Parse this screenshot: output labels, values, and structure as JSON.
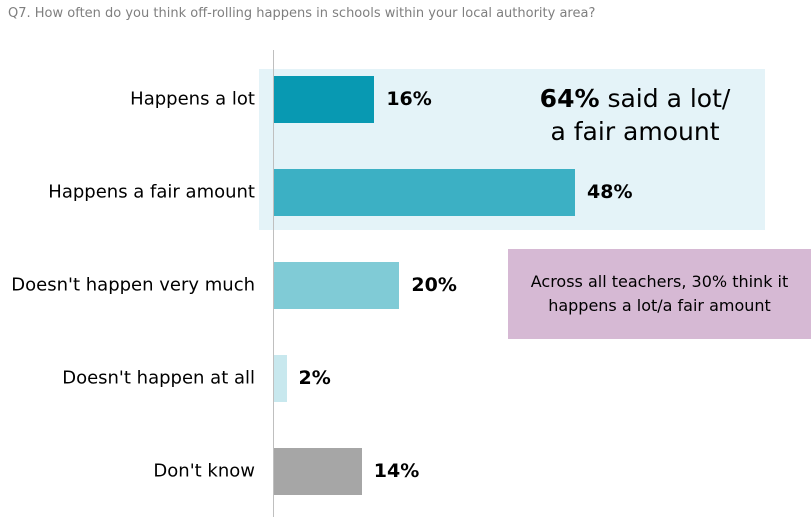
{
  "question": "Q7. How often do you think off-rolling happens in schools within your local authority area?",
  "chart_data": {
    "type": "bar",
    "orientation": "horizontal",
    "categories": [
      "Happens a lot",
      "Happens a fair amount",
      "Doesn't happen very much",
      "Doesn't happen at all",
      "Don't know"
    ],
    "values": [
      16,
      48,
      20,
      2,
      14
    ],
    "value_labels": [
      "16%",
      "48%",
      "20%",
      "2%",
      "14%"
    ],
    "colors": [
      "#0899b2",
      "#3cb0c4",
      "#80cbd6",
      "#c8e8ee",
      "#a6a6a6"
    ],
    "xlim": [
      0,
      48
    ],
    "title": "",
    "xlabel": "",
    "ylabel": "",
    "grid": false
  },
  "callout_main": {
    "pct": "64%",
    "line1_rest": " said a lot/",
    "line2": "a fair amount"
  },
  "callout_all": {
    "line1": "Across all teachers, 30% think it",
    "line2": "happens a lot/a fair amount"
  }
}
